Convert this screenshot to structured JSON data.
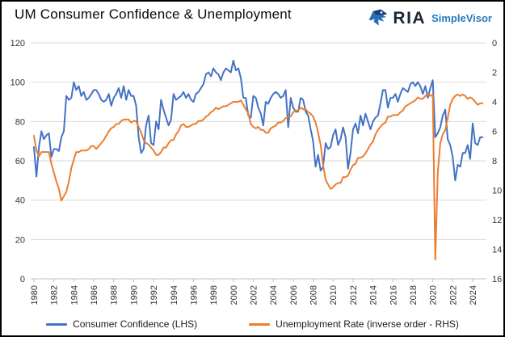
{
  "header": {
    "title": "UM Consumer Confidence & Unemployment",
    "logo": {
      "icon": "ria-eagle-icon",
      "brand": "RIA",
      "product": "SimpleVisor",
      "brand_color": "#1a2433",
      "product_color": "#2779bf",
      "icon_color_dark": "#143d75",
      "icon_color_light": "#2a6db5"
    }
  },
  "chart_data": {
    "type": "line",
    "title": "UM Consumer Confidence & Unemployment",
    "x_start_year": 1980,
    "points_per_year": 4,
    "x_tick_labels": [
      "1980",
      "1982",
      "1984",
      "1986",
      "1988",
      "1990",
      "1992",
      "1994",
      "1996",
      "1998",
      "2000",
      "2002",
      "2004",
      "2006",
      "2008",
      "2010",
      "2012",
      "2014",
      "2016",
      "2018",
      "2020",
      "2022",
      "2024"
    ],
    "left_axis": {
      "min": 0,
      "max": 120,
      "ticks": [
        0,
        20,
        40,
        60,
        80,
        100,
        120
      ]
    },
    "right_axis": {
      "min": 0,
      "max": 16,
      "ticks": [
        0,
        2,
        4,
        6,
        8,
        10,
        12,
        14,
        16
      ],
      "inverse_order": true
    },
    "gridline_color": "#d9d9d9",
    "axis_line_color": "#bfbfbf",
    "legend_position": "bottom",
    "series": [
      {
        "name": "Consumer Confidence (LHS)",
        "slug": "consumer-confidence-line",
        "axis": "left",
        "color": "#4472C4",
        "values": [
          67,
          52,
          67,
          75,
          71,
          73,
          74,
          62,
          66,
          66,
          65,
          72,
          75,
          93,
          91,
          92,
          100,
          96,
          98,
          93,
          95,
          91,
          92,
          94,
          96,
          96,
          94,
          91,
          90,
          91,
          94,
          88,
          92,
          94,
          97,
          92,
          98,
          91,
          96,
          93,
          93,
          88,
          72,
          64,
          66,
          78,
          83,
          69,
          68,
          80,
          76,
          91,
          86,
          82,
          78,
          81,
          94,
          91,
          92,
          93,
          95,
          92,
          94,
          91,
          90,
          94,
          95,
          97,
          99,
          104,
          105,
          103,
          107,
          105,
          104,
          101,
          105,
          107,
          106,
          105,
          111,
          106,
          107,
          102,
          92,
          92,
          83,
          82,
          93,
          92,
          87,
          84,
          78,
          90,
          89,
          92,
          94,
          95,
          94,
          92,
          93,
          96,
          77,
          92,
          87,
          85,
          85,
          92,
          91,
          85,
          83,
          76,
          70,
          57,
          63,
          55,
          57,
          69,
          66,
          67,
          73,
          76,
          68,
          71,
          77,
          72,
          56,
          64,
          76,
          79,
          74,
          83,
          78,
          84,
          80,
          76,
          80,
          82,
          83,
          89,
          96,
          96,
          87,
          92,
          92,
          94,
          90,
          94,
          97,
          96,
          95,
          99,
          100,
          98,
          100,
          98,
          94,
          98,
          92,
          97,
          101,
          72,
          74,
          77,
          83,
          86,
          71,
          68,
          62,
          50,
          58,
          57,
          64,
          64,
          68,
          61,
          79,
          69,
          68,
          72,
          72
        ]
      },
      {
        "name": "Unemployment Rate (inverse order - RHS)",
        "slug": "unemployment-rate-line",
        "axis": "right",
        "color": "#ED7D31",
        "values": [
          6.3,
          7.3,
          7.7,
          7.4,
          7.4,
          7.4,
          7.4,
          8.2,
          8.8,
          9.4,
          9.9,
          10.7,
          10.4,
          10.1,
          9.4,
          8.5,
          7.9,
          7.4,
          7.4,
          7.3,
          7.3,
          7.3,
          7.2,
          7.0,
          7.0,
          7.2,
          7.0,
          6.8,
          6.6,
          6.3,
          6.0,
          5.8,
          5.7,
          5.5,
          5.5,
          5.3,
          5.2,
          5.2,
          5.2,
          5.4,
          5.3,
          5.3,
          5.7,
          6.1,
          6.6,
          6.8,
          6.9,
          7.1,
          7.3,
          7.6,
          7.6,
          7.4,
          7.1,
          7.1,
          6.8,
          6.6,
          6.6,
          6.2,
          6.0,
          5.6,
          5.5,
          5.7,
          5.7,
          5.6,
          5.5,
          5.5,
          5.3,
          5.3,
          5.2,
          5.0,
          4.9,
          4.7,
          4.6,
          4.4,
          4.5,
          4.4,
          4.3,
          4.3,
          4.2,
          4.1,
          4.0,
          4.0,
          4.0,
          3.9,
          4.2,
          4.5,
          4.8,
          5.5,
          5.7,
          5.8,
          5.7,
          5.9,
          5.9,
          6.1,
          6.1,
          5.8,
          5.7,
          5.6,
          5.4,
          5.4,
          5.3,
          5.1,
          5.0,
          5.0,
          4.7,
          4.6,
          4.6,
          4.4,
          4.5,
          4.5,
          4.7,
          4.8,
          5.0,
          5.4,
          6.1,
          6.9,
          8.3,
          9.3,
          9.6,
          9.9,
          9.8,
          9.6,
          9.5,
          9.5,
          9.1,
          9.1,
          9.0,
          8.6,
          8.3,
          8.2,
          7.8,
          7.8,
          7.7,
          7.5,
          7.2,
          6.9,
          6.7,
          6.2,
          5.9,
          5.7,
          5.5,
          5.4,
          5.0,
          5.0,
          4.9,
          4.9,
          4.9,
          4.7,
          4.6,
          4.3,
          4.2,
          4.1,
          4.0,
          3.9,
          3.7,
          3.8,
          3.8,
          3.6,
          3.5,
          3.6,
          3.5,
          14.7,
          8.8,
          6.8,
          6.2,
          5.9,
          5.1,
          4.2,
          3.8,
          3.6,
          3.5,
          3.6,
          3.5,
          3.6,
          3.8,
          3.7,
          3.8,
          4.0,
          4.2,
          4.1,
          4.1
        ]
      }
    ]
  }
}
